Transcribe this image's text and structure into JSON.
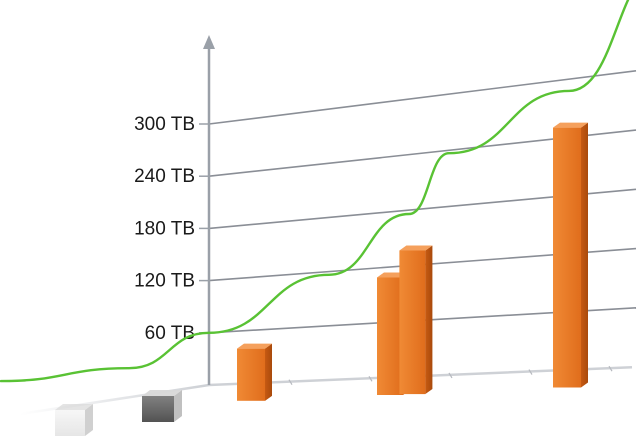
{
  "chart_data": {
    "type": "bar",
    "title": "",
    "xlabel": "",
    "ylabel": "",
    "ylim": [
      0,
      300
    ],
    "y_ticks": [
      "60 TB",
      "120 TB",
      "180 TB",
      "240 TB",
      "300 TB"
    ],
    "y_tick_values": [
      60,
      120,
      180,
      240,
      300
    ],
    "grid": true,
    "bars": [
      {
        "value": 60
      },
      {
        "value": 135
      },
      {
        "value": 165
      },
      {
        "value": 285
      }
    ],
    "trend_line": {
      "points": [
        {
          "x": -2.6,
          "y": 5
        },
        {
          "x": -1.0,
          "y": 20
        },
        {
          "x": 0.0,
          "y": 60
        },
        {
          "x": 1.5,
          "y": 120
        },
        {
          "x": 2.5,
          "y": 180
        },
        {
          "x": 3.0,
          "y": 240
        },
        {
          "x": 4.5,
          "y": 290
        },
        {
          "x": 5.7,
          "y": 400
        }
      ]
    },
    "colors": {
      "bar": "#e8782a",
      "trend": "#59c234",
      "grid": "#8a8e96",
      "axis": "#9aa0a8"
    }
  }
}
